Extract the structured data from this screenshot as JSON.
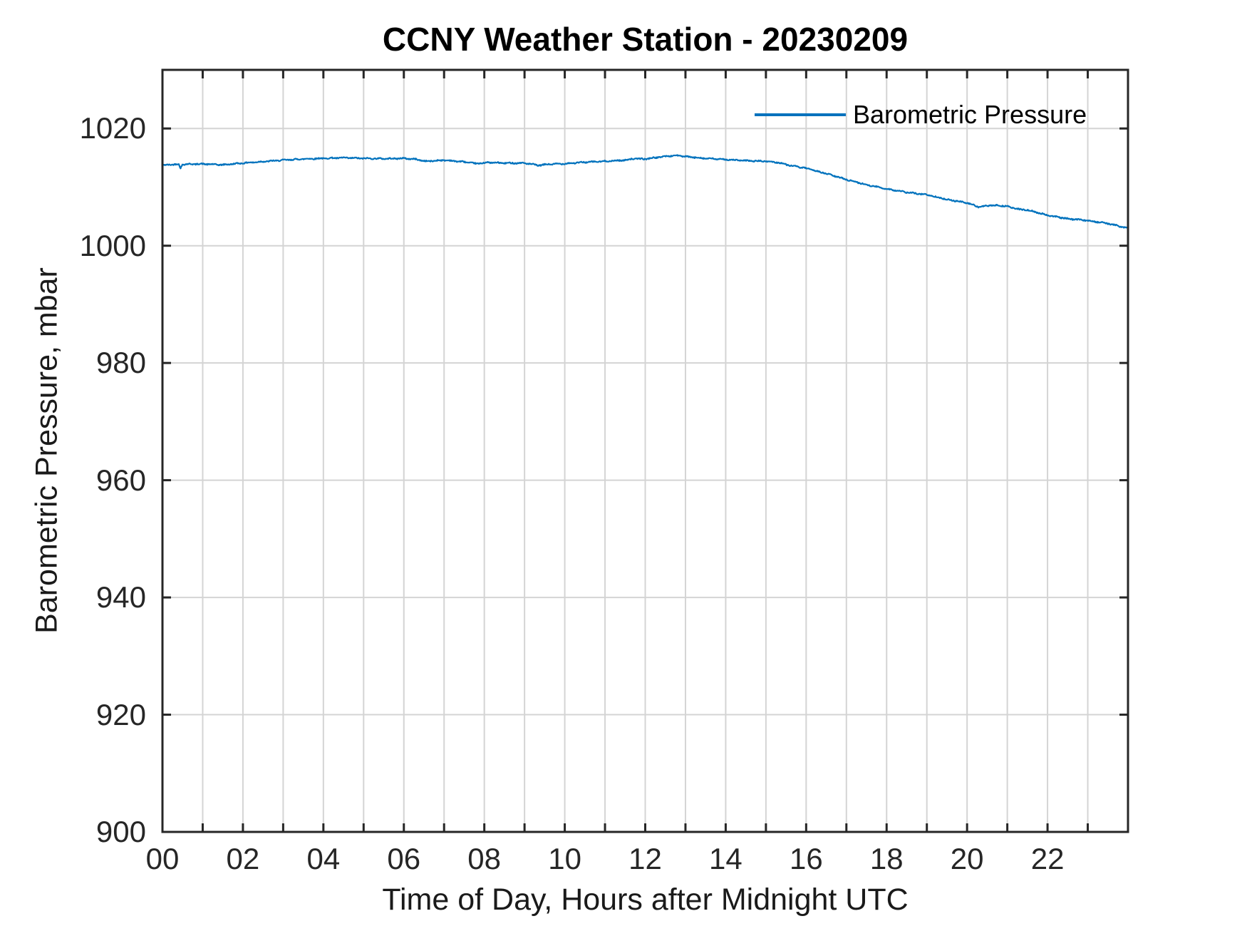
{
  "style": {
    "background": "#ffffff",
    "axis_color": "#262626",
    "grid_color": "#d4d4d4",
    "tick_label_color": "#262626",
    "line_color": "#0072BD",
    "line_width": 2.2,
    "axis_line_width": 3,
    "tick_length": 12
  },
  "chart_data": {
    "type": "line",
    "title": "CCNY Weather Station - 20230209",
    "xlabel": "Time of Day, Hours after Midnight UTC",
    "ylabel": "Barometric Pressure, mbar",
    "xlim": [
      0,
      24
    ],
    "ylim": [
      900,
      1030
    ],
    "grid": true,
    "x_tick_step": 1,
    "x_label_ticks": [
      {
        "v": 0,
        "label": "00"
      },
      {
        "v": 2,
        "label": "02"
      },
      {
        "v": 4,
        "label": "04"
      },
      {
        "v": 6,
        "label": "06"
      },
      {
        "v": 8,
        "label": "08"
      },
      {
        "v": 10,
        "label": "10"
      },
      {
        "v": 12,
        "label": "12"
      },
      {
        "v": 14,
        "label": "14"
      },
      {
        "v": 16,
        "label": "16"
      },
      {
        "v": 18,
        "label": "18"
      },
      {
        "v": 20,
        "label": "20"
      },
      {
        "v": 22,
        "label": "22"
      }
    ],
    "y_ticks": [
      {
        "v": 900,
        "label": "900"
      },
      {
        "v": 920,
        "label": "920"
      },
      {
        "v": 940,
        "label": "940"
      },
      {
        "v": 960,
        "label": "960"
      },
      {
        "v": 980,
        "label": "980"
      },
      {
        "v": 1000,
        "label": "1000"
      },
      {
        "v": 1020,
        "label": "1020"
      }
    ],
    "legend": {
      "position": "top-right",
      "entries": [
        {
          "label": "Barometric Pressure",
          "color": "#0072BD"
        }
      ]
    },
    "series": [
      {
        "name": "Barometric Pressure",
        "color": "#0072BD",
        "units": "mbar",
        "x_units": "hours after midnight UTC",
        "points": [
          [
            0.0,
            1013.7
          ],
          [
            0.2,
            1013.85
          ],
          [
            0.4,
            1013.9
          ],
          [
            0.45,
            1013.25
          ],
          [
            0.5,
            1013.9
          ],
          [
            1.0,
            1013.95
          ],
          [
            1.5,
            1013.8
          ],
          [
            2.0,
            1014.1
          ],
          [
            2.5,
            1014.35
          ],
          [
            3.0,
            1014.6
          ],
          [
            3.5,
            1014.8
          ],
          [
            4.0,
            1014.9
          ],
          [
            4.5,
            1015.0
          ],
          [
            5.0,
            1014.9
          ],
          [
            5.5,
            1014.85
          ],
          [
            6.0,
            1014.9
          ],
          [
            6.3,
            1014.75
          ],
          [
            6.55,
            1014.4
          ],
          [
            7.0,
            1014.6
          ],
          [
            7.5,
            1014.3
          ],
          [
            7.8,
            1014.0
          ],
          [
            8.1,
            1014.2
          ],
          [
            8.5,
            1014.1
          ],
          [
            9.0,
            1014.1
          ],
          [
            9.35,
            1013.7
          ],
          [
            9.6,
            1013.9
          ],
          [
            10.0,
            1014.0
          ],
          [
            10.5,
            1014.25
          ],
          [
            11.0,
            1014.4
          ],
          [
            11.5,
            1014.6
          ],
          [
            11.7,
            1014.85
          ],
          [
            12.0,
            1014.8
          ],
          [
            12.5,
            1015.25
          ],
          [
            12.8,
            1015.4
          ],
          [
            13.0,
            1015.2
          ],
          [
            13.5,
            1014.9
          ],
          [
            14.0,
            1014.7
          ],
          [
            14.5,
            1014.5
          ],
          [
            15.0,
            1014.4
          ],
          [
            15.3,
            1014.2
          ],
          [
            15.6,
            1013.7
          ],
          [
            16.0,
            1013.2
          ],
          [
            16.5,
            1012.3
          ],
          [
            17.0,
            1011.3
          ],
          [
            17.5,
            1010.4
          ],
          [
            18.0,
            1009.7
          ],
          [
            18.5,
            1009.1
          ],
          [
            19.0,
            1008.7
          ],
          [
            19.5,
            1007.9
          ],
          [
            20.0,
            1007.3
          ],
          [
            20.3,
            1006.6
          ],
          [
            20.6,
            1006.9
          ],
          [
            20.9,
            1006.8
          ],
          [
            21.0,
            1006.7
          ],
          [
            21.3,
            1006.2
          ],
          [
            21.5,
            1006.1
          ],
          [
            22.0,
            1005.2
          ],
          [
            22.5,
            1004.6
          ],
          [
            23.0,
            1004.3
          ],
          [
            23.5,
            1003.8
          ],
          [
            23.8,
            1003.3
          ],
          [
            23.97,
            1003.0
          ]
        ]
      }
    ]
  }
}
